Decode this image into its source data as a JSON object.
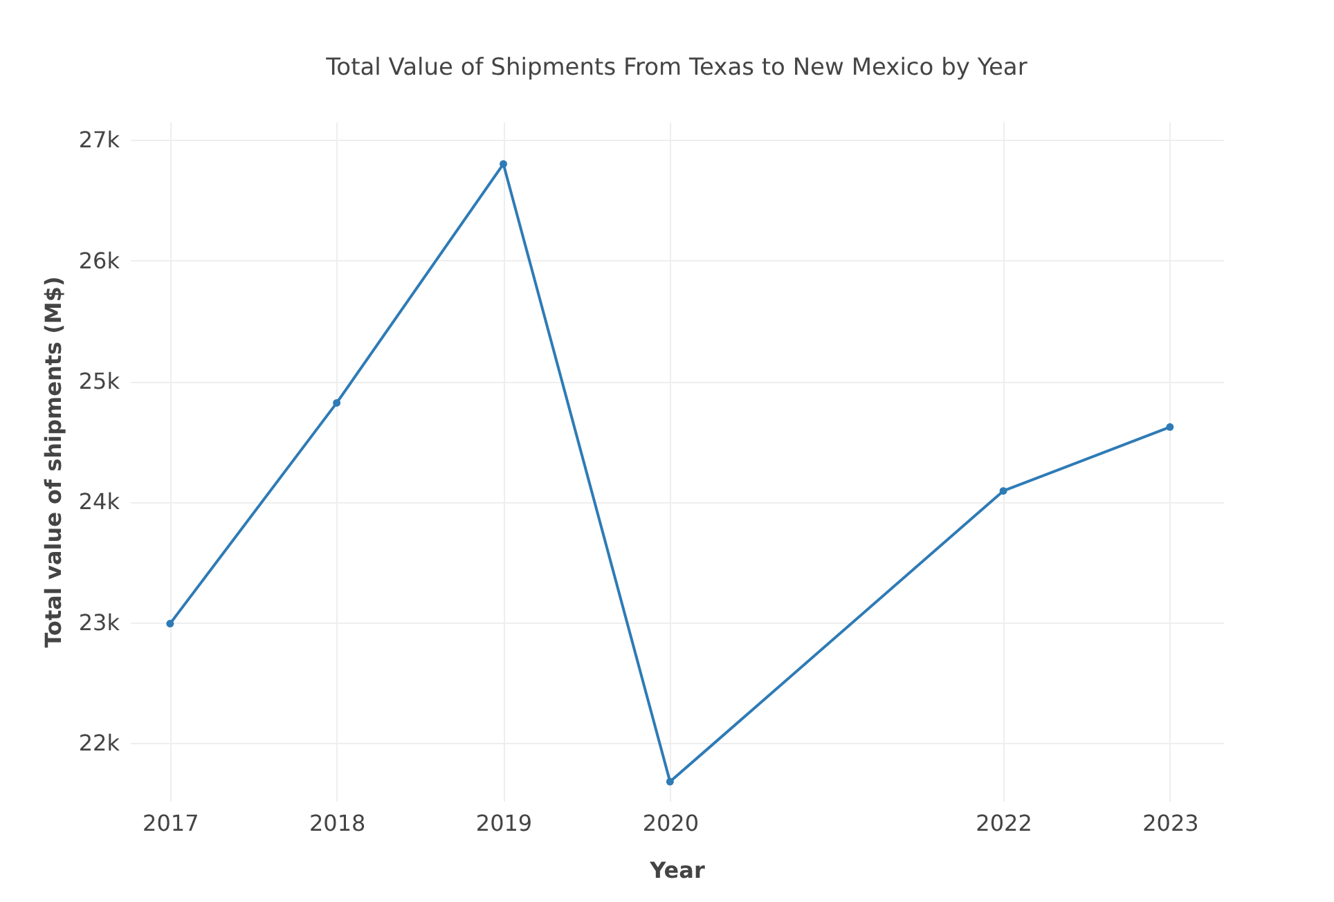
{
  "chart_data": {
    "type": "line",
    "title": "Total Value of Shipments From Texas to New Mexico by Year",
    "xlabel": "Year",
    "ylabel": "Total value of shipments (M$)",
    "x": [
      2017,
      2018,
      2019,
      2020,
      2022,
      2023
    ],
    "series": [
      {
        "color": "#2e7bb6",
        "values": [
          22990,
          24820,
          26800,
          21680,
          24090,
          24620
        ]
      }
    ],
    "xlim": [
      2016.76,
      2023.32
    ],
    "xticks": [
      2017,
      2018,
      2019,
      2020,
      2022,
      2023
    ],
    "ylim": [
      21520,
      27150
    ],
    "yticks": [
      {
        "value": 22000,
        "label": "22k"
      },
      {
        "value": 23000,
        "label": "23k"
      },
      {
        "value": 24000,
        "label": "24k"
      },
      {
        "value": 25000,
        "label": "25k"
      },
      {
        "value": 26000,
        "label": "26k"
      },
      {
        "value": 27000,
        "label": "27k"
      }
    ],
    "grid": true,
    "marker": "circle",
    "line_style": "solid"
  }
}
